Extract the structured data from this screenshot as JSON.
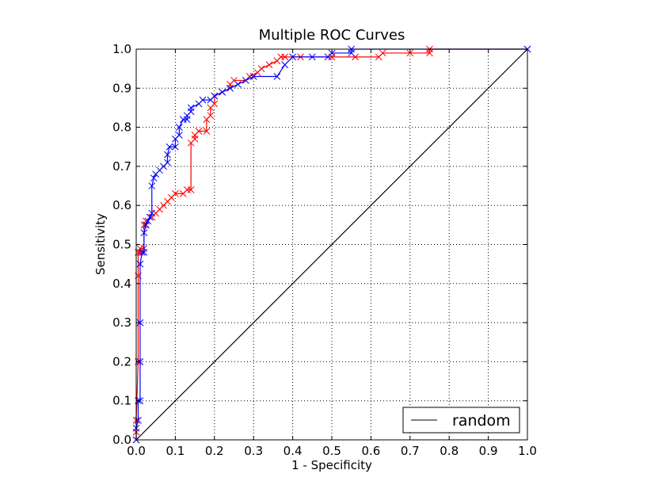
{
  "chart_data": {
    "type": "line",
    "title": "Multiple ROC Curves",
    "xlabel": "1 - Specificity",
    "ylabel": "Sensitivity",
    "xlim": [
      0.0,
      1.0
    ],
    "ylim": [
      0.0,
      1.0
    ],
    "xticks": [
      "0.0",
      "0.1",
      "0.2",
      "0.3",
      "0.4",
      "0.5",
      "0.6",
      "0.7",
      "0.8",
      "0.9",
      "1.0"
    ],
    "yticks": [
      "0.0",
      "0.1",
      "0.2",
      "0.3",
      "0.4",
      "0.5",
      "0.6",
      "0.7",
      "0.8",
      "0.9",
      "1.0"
    ],
    "grid": true,
    "legend": {
      "position": "lower-right",
      "entries": [
        "random"
      ]
    },
    "series": [
      {
        "name": "",
        "color": "#ff0000",
        "marker": "x",
        "points": [
          [
            0.0,
            0.0
          ],
          [
            0.0,
            0.02
          ],
          [
            0.0,
            0.05
          ],
          [
            0.005,
            0.2
          ],
          [
            0.005,
            0.42
          ],
          [
            0.005,
            0.48
          ],
          [
            0.01,
            0.48
          ],
          [
            0.01,
            0.49
          ],
          [
            0.02,
            0.49
          ],
          [
            0.02,
            0.55
          ],
          [
            0.025,
            0.55
          ],
          [
            0.025,
            0.56
          ],
          [
            0.04,
            0.57
          ],
          [
            0.05,
            0.58
          ],
          [
            0.06,
            0.59
          ],
          [
            0.07,
            0.6
          ],
          [
            0.08,
            0.61
          ],
          [
            0.09,
            0.62
          ],
          [
            0.1,
            0.63
          ],
          [
            0.12,
            0.63
          ],
          [
            0.13,
            0.64
          ],
          [
            0.14,
            0.64
          ],
          [
            0.14,
            0.76
          ],
          [
            0.15,
            0.77
          ],
          [
            0.15,
            0.78
          ],
          [
            0.16,
            0.79
          ],
          [
            0.18,
            0.79
          ],
          [
            0.18,
            0.82
          ],
          [
            0.19,
            0.83
          ],
          [
            0.19,
            0.85
          ],
          [
            0.2,
            0.86
          ],
          [
            0.2,
            0.88
          ],
          [
            0.22,
            0.89
          ],
          [
            0.24,
            0.9
          ],
          [
            0.24,
            0.91
          ],
          [
            0.25,
            0.92
          ],
          [
            0.28,
            0.92
          ],
          [
            0.29,
            0.93
          ],
          [
            0.31,
            0.94
          ],
          [
            0.32,
            0.95
          ],
          [
            0.34,
            0.96
          ],
          [
            0.36,
            0.97
          ],
          [
            0.37,
            0.98
          ],
          [
            0.38,
            0.98
          ],
          [
            0.42,
            0.98
          ],
          [
            0.5,
            0.98
          ],
          [
            0.56,
            0.98
          ],
          [
            0.62,
            0.98
          ],
          [
            0.63,
            0.99
          ],
          [
            0.7,
            0.99
          ],
          [
            0.75,
            0.99
          ],
          [
            0.75,
            1.0
          ],
          [
            1.0,
            1.0
          ]
        ]
      },
      {
        "name": "",
        "color": "#0000ff",
        "marker": "x",
        "points": [
          [
            0.0,
            0.0
          ],
          [
            0.0,
            0.03
          ],
          [
            0.005,
            0.05
          ],
          [
            0.005,
            0.1
          ],
          [
            0.01,
            0.1
          ],
          [
            0.01,
            0.2
          ],
          [
            0.01,
            0.3
          ],
          [
            0.01,
            0.45
          ],
          [
            0.015,
            0.48
          ],
          [
            0.02,
            0.48
          ],
          [
            0.02,
            0.53
          ],
          [
            0.025,
            0.55
          ],
          [
            0.03,
            0.56
          ],
          [
            0.035,
            0.57
          ],
          [
            0.04,
            0.58
          ],
          [
            0.04,
            0.65
          ],
          [
            0.045,
            0.67
          ],
          [
            0.05,
            0.68
          ],
          [
            0.06,
            0.69
          ],
          [
            0.07,
            0.7
          ],
          [
            0.08,
            0.71
          ],
          [
            0.08,
            0.73
          ],
          [
            0.085,
            0.75
          ],
          [
            0.1,
            0.75
          ],
          [
            0.1,
            0.77
          ],
          [
            0.11,
            0.78
          ],
          [
            0.11,
            0.8
          ],
          [
            0.12,
            0.82
          ],
          [
            0.13,
            0.82
          ],
          [
            0.13,
            0.83
          ],
          [
            0.14,
            0.84
          ],
          [
            0.14,
            0.85
          ],
          [
            0.16,
            0.86
          ],
          [
            0.17,
            0.87
          ],
          [
            0.19,
            0.87
          ],
          [
            0.2,
            0.88
          ],
          [
            0.22,
            0.89
          ],
          [
            0.24,
            0.9
          ],
          [
            0.26,
            0.91
          ],
          [
            0.28,
            0.92
          ],
          [
            0.3,
            0.93
          ],
          [
            0.36,
            0.93
          ],
          [
            0.38,
            0.96
          ],
          [
            0.4,
            0.98
          ],
          [
            0.45,
            0.98
          ],
          [
            0.49,
            0.98
          ],
          [
            0.5,
            0.99
          ],
          [
            0.55,
            0.99
          ],
          [
            0.55,
            1.0
          ],
          [
            1.0,
            1.0
          ]
        ]
      },
      {
        "name": "random",
        "color": "#000000",
        "marker": "none",
        "points": [
          [
            0.0,
            0.0
          ],
          [
            1.0,
            1.0
          ]
        ]
      }
    ]
  }
}
